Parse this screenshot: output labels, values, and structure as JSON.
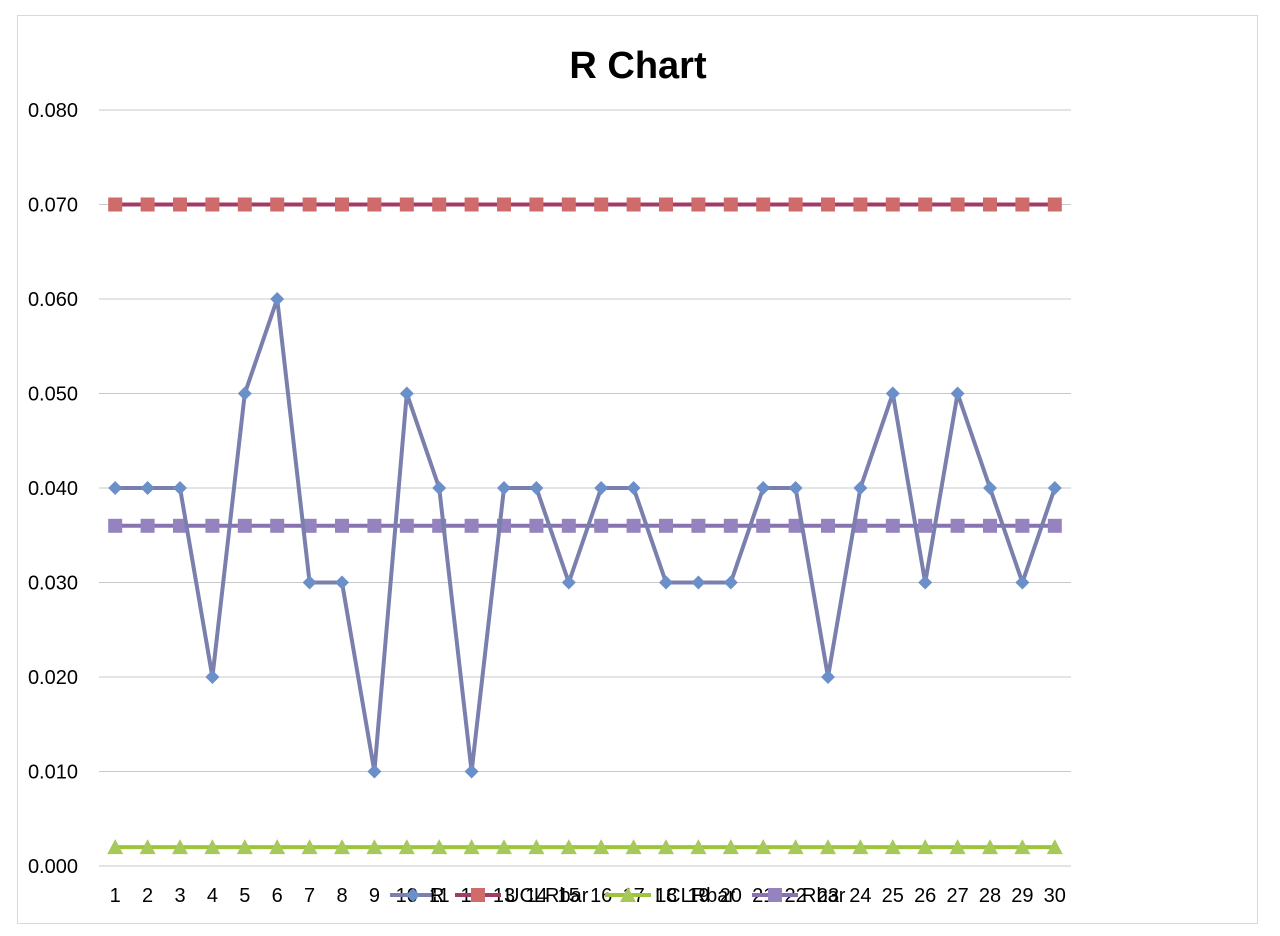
{
  "chart_data": {
    "type": "line",
    "title": "R Chart",
    "xlabel": "",
    "ylabel": "",
    "categories": [
      "1",
      "2",
      "3",
      "4",
      "5",
      "6",
      "7",
      "8",
      "9",
      "10",
      "11",
      "12",
      "13",
      "14",
      "15",
      "16",
      "17",
      "18",
      "19",
      "20",
      "21",
      "22",
      "23",
      "24",
      "25",
      "26",
      "27",
      "28",
      "29",
      "30"
    ],
    "ylim": [
      0,
      0.08
    ],
    "yticks": [
      "0.000",
      "0.010",
      "0.020",
      "0.030",
      "0.040",
      "0.050",
      "0.060",
      "0.070",
      "0.080"
    ],
    "grid": true,
    "legend": "bottom",
    "series": [
      {
        "name": "R",
        "color": "#7a7fad",
        "marker": "diamond",
        "marker_color": "#6b8fc9",
        "values": [
          0.04,
          0.04,
          0.04,
          0.02,
          0.05,
          0.06,
          0.03,
          0.03,
          0.01,
          0.05,
          0.04,
          0.01,
          0.04,
          0.04,
          0.03,
          0.04,
          0.04,
          0.03,
          0.03,
          0.03,
          0.04,
          0.04,
          0.02,
          0.04,
          0.05,
          0.03,
          0.05,
          0.04,
          0.03,
          0.04
        ]
      },
      {
        "name": "UCLRbar",
        "color": "#a03c66",
        "marker": "square",
        "marker_color": "#d06b6b",
        "values": [
          0.07,
          0.07,
          0.07,
          0.07,
          0.07,
          0.07,
          0.07,
          0.07,
          0.07,
          0.07,
          0.07,
          0.07,
          0.07,
          0.07,
          0.07,
          0.07,
          0.07,
          0.07,
          0.07,
          0.07,
          0.07,
          0.07,
          0.07,
          0.07,
          0.07,
          0.07,
          0.07,
          0.07,
          0.07,
          0.07
        ]
      },
      {
        "name": "LCLRbar",
        "color": "#9dc53a",
        "marker": "triangle",
        "marker_color": "#a7c95a",
        "values": [
          0.002,
          0.002,
          0.002,
          0.002,
          0.002,
          0.002,
          0.002,
          0.002,
          0.002,
          0.002,
          0.002,
          0.002,
          0.002,
          0.002,
          0.002,
          0.002,
          0.002,
          0.002,
          0.002,
          0.002,
          0.002,
          0.002,
          0.002,
          0.002,
          0.002,
          0.002,
          0.002,
          0.002,
          0.002,
          0.002
        ]
      },
      {
        "name": "Rbar",
        "color": "#8773b0",
        "marker": "square",
        "marker_color": "#9483bf",
        "values": [
          0.036,
          0.036,
          0.036,
          0.036,
          0.036,
          0.036,
          0.036,
          0.036,
          0.036,
          0.036,
          0.036,
          0.036,
          0.036,
          0.036,
          0.036,
          0.036,
          0.036,
          0.036,
          0.036,
          0.036,
          0.036,
          0.036,
          0.036,
          0.036,
          0.036,
          0.036,
          0.036,
          0.036,
          0.036,
          0.036
        ]
      }
    ]
  }
}
